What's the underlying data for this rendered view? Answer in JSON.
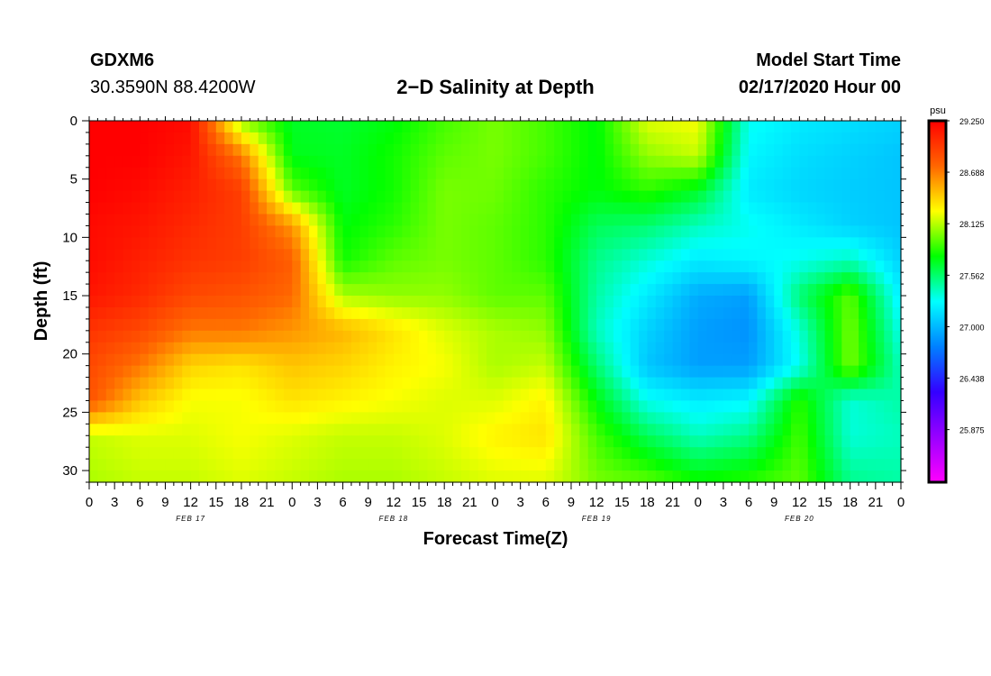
{
  "header": {
    "station": "GDXM6",
    "coords": "30.3590N 88.4200W",
    "title": "2−D Salinity at Depth",
    "start_label": "Model Start Time",
    "start_value": "02/17/2020 Hour 00"
  },
  "chart_data": {
    "type": "heatmap",
    "title": "2−D Salinity at Depth",
    "xlabel": "Forecast Time(Z)",
    "ylabel": "Depth (ft)",
    "x_unit": "hours from model start (02/17/2020 00Z)",
    "xlim": [
      0,
      96
    ],
    "ylim": [
      0,
      31
    ],
    "y_inverted": true,
    "x_tick_labels": [
      "0",
      "3",
      "6",
      "9",
      "12",
      "15",
      "18",
      "21",
      "0",
      "3",
      "6",
      "9",
      "12",
      "15",
      "18",
      "21",
      "0",
      "3",
      "6",
      "9",
      "12",
      "15",
      "18",
      "21",
      "0",
      "3",
      "6",
      "9",
      "12",
      "15",
      "18",
      "21",
      "0"
    ],
    "date_labels": [
      "FEB 17",
      "FEB 18",
      "FEB 19",
      "FEB 20"
    ],
    "y_ticks": [
      0,
      5,
      10,
      15,
      20,
      25,
      30
    ],
    "colorbar": {
      "unit": "psu",
      "min": 25.3,
      "max": 29.25,
      "tick_values": [
        29.25,
        28.688,
        28.125,
        27.562,
        27.0,
        26.438,
        25.875
      ],
      "tick_labels": [
        "29.250",
        "28.688",
        "28.125",
        "27.562",
        "27.000",
        "26.438",
        "25.875"
      ],
      "colors": [
        "#ff00ff",
        "#9900ff",
        "#3300ff",
        "#0080ff",
        "#00ffff",
        "#00ff00",
        "#ffff00",
        "#ff6600",
        "#ff0000"
      ]
    },
    "x_hours": [
      0,
      6,
      12,
      18,
      24,
      30,
      36,
      42,
      48,
      54,
      60,
      66,
      72,
      78,
      84,
      90,
      96
    ],
    "y_depths": [
      0,
      3,
      6,
      9,
      12,
      15,
      18,
      21,
      24,
      27,
      31
    ],
    "values": [
      [
        29.25,
        29.25,
        29.2,
        28.05,
        27.7,
        27.68,
        27.75,
        27.9,
        28.0,
        27.9,
        27.75,
        28.2,
        28.25,
        27.3,
        27.2,
        27.15,
        27.1
      ],
      [
        29.25,
        29.25,
        29.15,
        28.7,
        27.72,
        27.7,
        27.8,
        27.95,
        28.0,
        27.9,
        27.75,
        28.05,
        28.15,
        27.25,
        27.15,
        27.1,
        27.05
      ],
      [
        29.25,
        29.2,
        29.1,
        28.95,
        27.95,
        27.7,
        27.8,
        28.0,
        27.98,
        27.85,
        27.75,
        27.85,
        27.7,
        27.2,
        27.12,
        27.08,
        27.05
      ],
      [
        29.2,
        29.15,
        29.05,
        28.95,
        28.6,
        27.75,
        27.85,
        28.0,
        27.95,
        27.85,
        27.6,
        27.55,
        27.4,
        27.3,
        27.2,
        27.1,
        27.05
      ],
      [
        29.2,
        29.1,
        29.0,
        28.95,
        28.8,
        27.8,
        27.95,
        28.0,
        27.95,
        27.85,
        27.5,
        27.35,
        27.2,
        27.25,
        27.3,
        27.4,
        27.1
      ],
      [
        29.15,
        29.05,
        28.9,
        28.85,
        28.75,
        28.1,
        28.05,
        28.05,
        27.95,
        27.95,
        27.45,
        27.2,
        26.95,
        26.9,
        27.55,
        27.95,
        27.2
      ],
      [
        29.0,
        28.9,
        28.7,
        28.7,
        28.6,
        28.5,
        28.35,
        28.2,
        28.1,
        28.05,
        27.4,
        27.1,
        26.9,
        26.85,
        27.35,
        28.0,
        27.3
      ],
      [
        28.9,
        28.7,
        28.4,
        28.35,
        28.45,
        28.4,
        28.3,
        28.25,
        28.1,
        28.15,
        27.55,
        27.05,
        26.9,
        26.9,
        27.3,
        28.0,
        27.4
      ],
      [
        28.85,
        28.45,
        28.25,
        28.25,
        28.35,
        28.3,
        28.25,
        28.2,
        28.2,
        28.3,
        27.75,
        27.3,
        27.2,
        27.25,
        27.85,
        27.35,
        27.45
      ],
      [
        28.15,
        28.2,
        28.2,
        28.25,
        28.2,
        28.15,
        28.15,
        28.2,
        28.3,
        28.35,
        27.9,
        27.6,
        27.4,
        27.5,
        27.9,
        27.35,
        27.4
      ],
      [
        28.1,
        28.15,
        28.15,
        28.2,
        28.15,
        28.1,
        28.1,
        28.15,
        28.2,
        28.2,
        28.0,
        27.95,
        27.8,
        27.85,
        27.95,
        27.5,
        27.45
      ]
    ]
  }
}
